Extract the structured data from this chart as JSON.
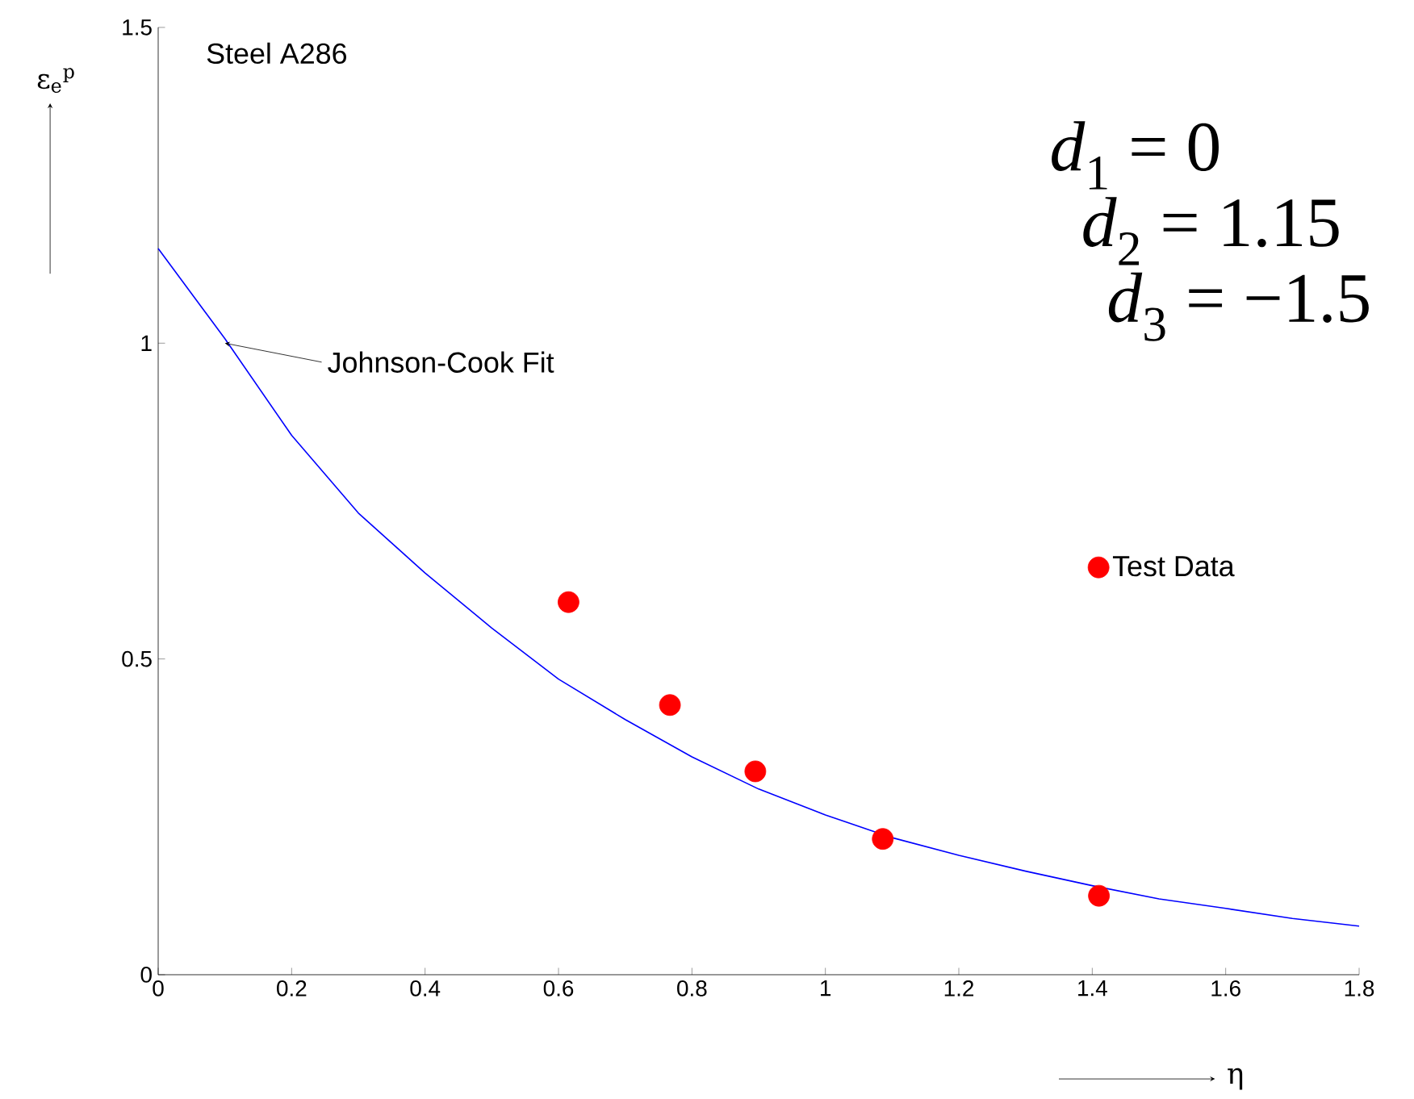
{
  "chart_data": {
    "type": "scatter",
    "title": "Steel A286",
    "xlabel": "η",
    "ylabel": "ε$_{e}$$^{p}$",
    "xlim": [
      0,
      1.8
    ],
    "ylim": [
      0,
      1.5
    ],
    "xticks": [
      0,
      0.2,
      0.4,
      0.6,
      0.8,
      1,
      1.2,
      1.4,
      1.6,
      1.8
    ],
    "yticks": [
      0,
      0.5,
      1,
      1.5
    ],
    "grid": false,
    "legend": "right",
    "series": [
      {
        "type": "line",
        "color": "#0000ff",
        "marker": "none",
        "x": [
          0,
          0.1,
          0.2,
          0.3,
          0.4,
          0.5,
          0.6,
          0.7,
          0.8,
          0.9,
          1.0,
          1.1,
          1.2,
          1.3,
          1.4,
          1.5,
          1.6,
          1.7,
          1.8
        ],
        "values": [
          1.15,
          1.007,
          0.854,
          0.731,
          0.636,
          0.549,
          0.468,
          0.404,
          0.345,
          0.294,
          0.253,
          0.217,
          0.189,
          0.164,
          0.141,
          0.12,
          0.105,
          0.089,
          0.077
        ]
      },
      {
        "name": "Test Data",
        "color": "#ff0000",
        "marker": "circle",
        "x": [
          0.615,
          0.767,
          0.895,
          1.086,
          1.41
        ],
        "values": [
          0.59,
          0.427,
          0.322,
          0.215,
          0.125
        ]
      }
    ],
    "annotations": [
      {
        "text": "Johnson-Cook Fit",
        "x": 0.1,
        "y": 1.0
      },
      "*d*$_{1}$ = 0",
      "*d*$_{2}$ = 1.15",
      "*d*$_{3}$ = −1.5"
    ]
  }
}
